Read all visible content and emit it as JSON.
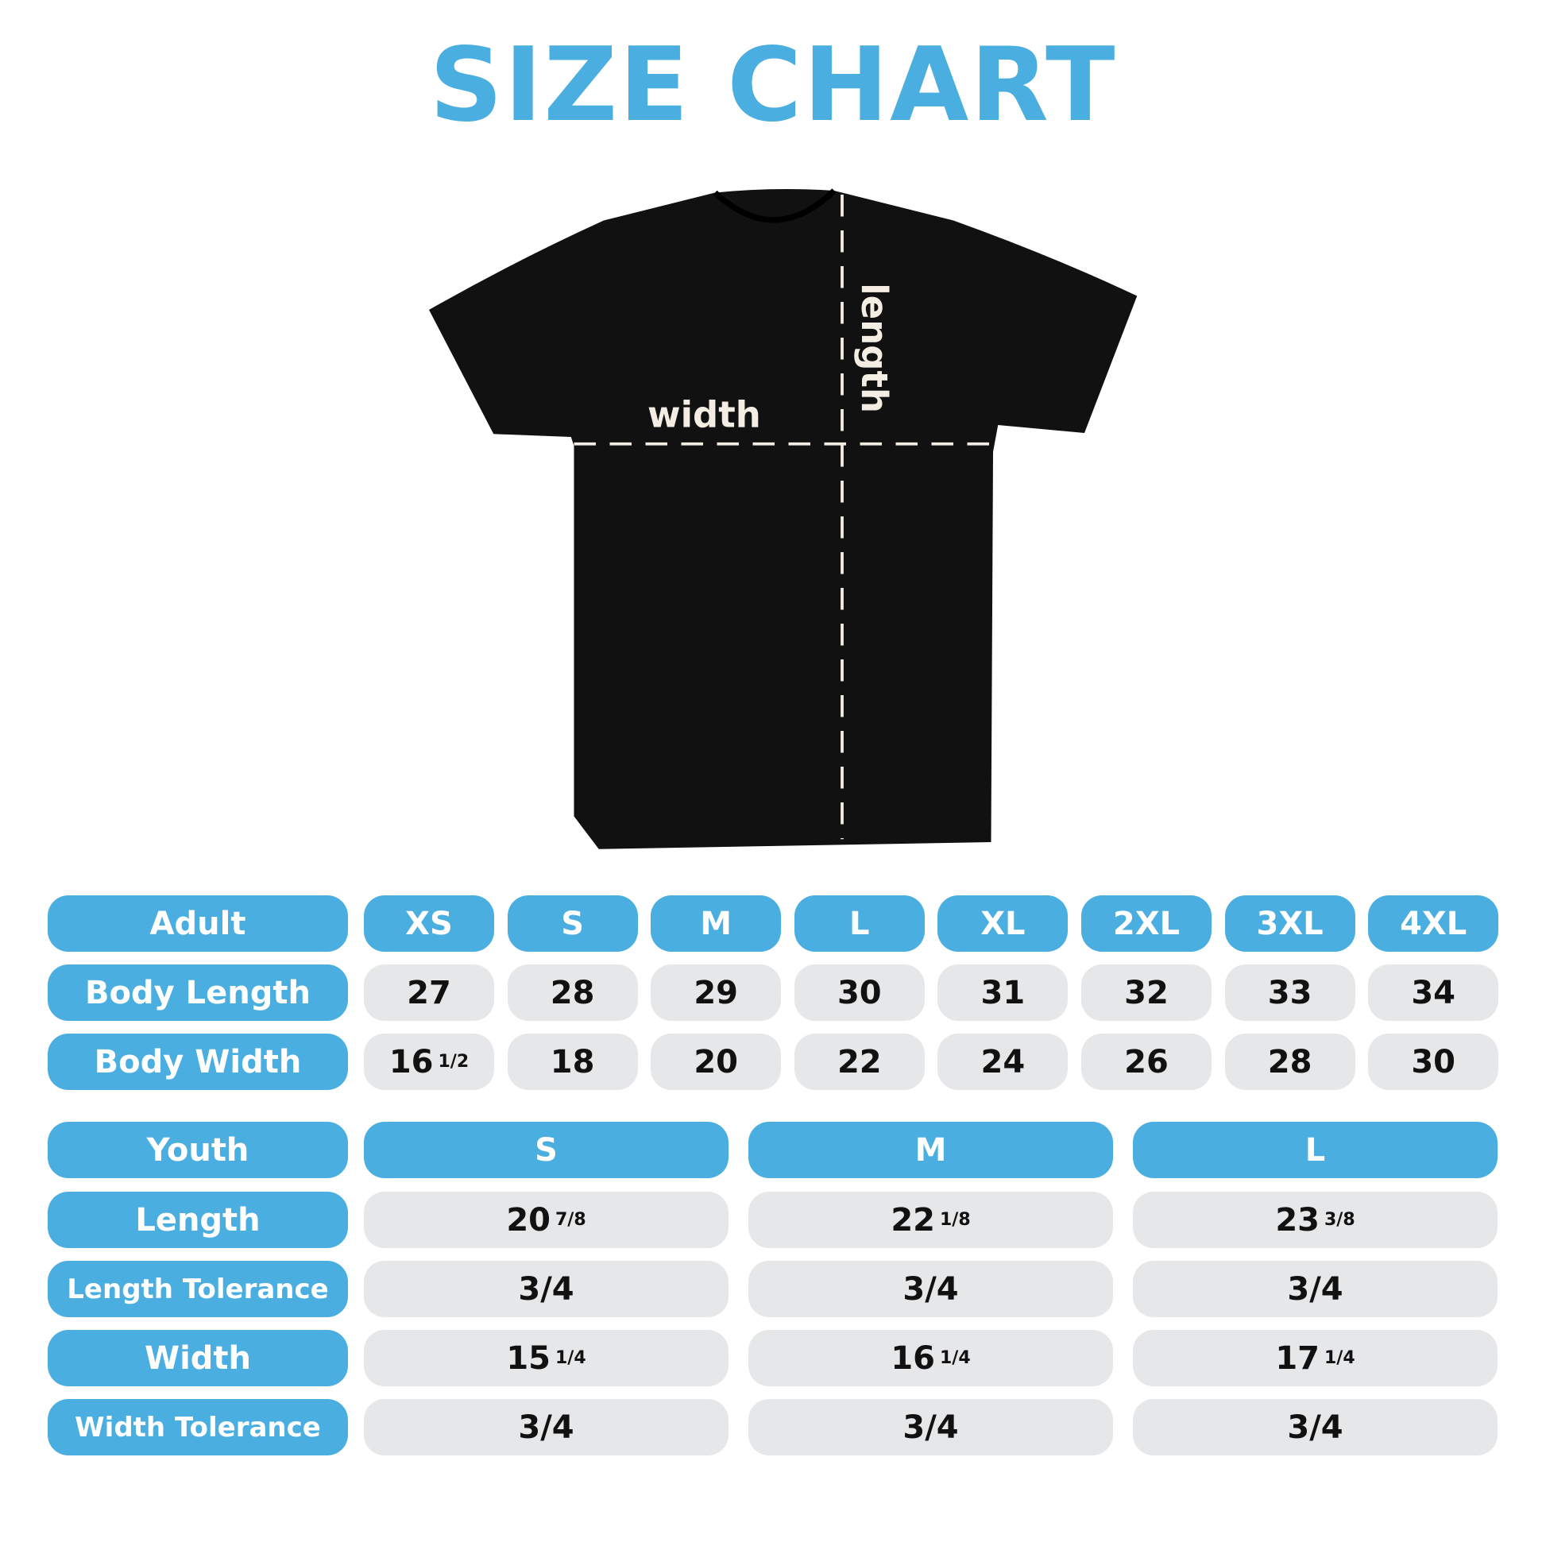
{
  "title": "SIZE CHART",
  "colors": {
    "accent": "#4aaee0",
    "cell": "#e6e7e9",
    "shirt": "#111111",
    "guide": "#f3ede4"
  },
  "diagram": {
    "width_label": "width",
    "length_label": "length"
  },
  "adult": {
    "header": "Adult",
    "sizes": [
      "XS",
      "S",
      "M",
      "L",
      "XL",
      "2XL",
      "3XL",
      "4XL"
    ],
    "rows": [
      {
        "label": "Body Length",
        "values": [
          {
            "w": "27",
            "f": ""
          },
          {
            "w": "28",
            "f": ""
          },
          {
            "w": "29",
            "f": ""
          },
          {
            "w": "30",
            "f": ""
          },
          {
            "w": "31",
            "f": ""
          },
          {
            "w": "32",
            "f": ""
          },
          {
            "w": "33",
            "f": ""
          },
          {
            "w": "34",
            "f": ""
          }
        ]
      },
      {
        "label": "Body Width",
        "values": [
          {
            "w": "16",
            "f": "1/2"
          },
          {
            "w": "18",
            "f": ""
          },
          {
            "w": "20",
            "f": ""
          },
          {
            "w": "22",
            "f": ""
          },
          {
            "w": "24",
            "f": ""
          },
          {
            "w": "26",
            "f": ""
          },
          {
            "w": "28",
            "f": ""
          },
          {
            "w": "30",
            "f": ""
          }
        ]
      }
    ]
  },
  "youth": {
    "header": "Youth",
    "sizes": [
      "S",
      "M",
      "L"
    ],
    "rows": [
      {
        "label": "Length",
        "values": [
          {
            "w": "20",
            "f": "7/8"
          },
          {
            "w": "22",
            "f": "1/8"
          },
          {
            "w": "23",
            "f": "3/8"
          }
        ]
      },
      {
        "label": "Length Tolerance",
        "values": [
          {
            "w": "3/4",
            "f": ""
          },
          {
            "w": "3/4",
            "f": ""
          },
          {
            "w": "3/4",
            "f": ""
          }
        ]
      },
      {
        "label": "Width",
        "values": [
          {
            "w": "15",
            "f": "1/4"
          },
          {
            "w": "16",
            "f": "1/4"
          },
          {
            "w": "17",
            "f": "1/4"
          }
        ]
      },
      {
        "label": "Width Tolerance",
        "values": [
          {
            "w": "3/4",
            "f": ""
          },
          {
            "w": "3/4",
            "f": ""
          },
          {
            "w": "3/4",
            "f": ""
          }
        ]
      }
    ]
  }
}
